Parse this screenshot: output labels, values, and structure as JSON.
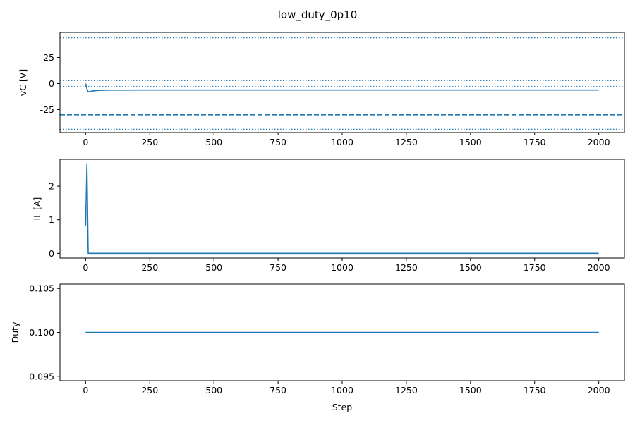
{
  "title": "low_duty_0p10",
  "chart_data": [
    {
      "type": "line",
      "ylabel": "vC [V]",
      "xlabel": "",
      "xlim": [
        -100,
        2100
      ],
      "ylim": [
        -47,
        49
      ],
      "xticks": [
        0,
        250,
        500,
        750,
        1000,
        1250,
        1500,
        1750,
        2000
      ],
      "yticks": [
        -25,
        0,
        25
      ],
      "series": [
        {
          "x": [
            0,
            5,
            10,
            20,
            30,
            50,
            75,
            100,
            150,
            200,
            300,
            500,
            1000,
            1500,
            2000
          ],
          "y": [
            0,
            -5,
            -8,
            -7.5,
            -7,
            -6.6,
            -6.4,
            -6.3,
            -6.3,
            -6.2,
            -6.2,
            -6.2,
            -6.2,
            -6.2,
            -6.2
          ]
        }
      ],
      "hlines": [
        {
          "y": 44,
          "style": "dotted"
        },
        {
          "y": 3,
          "style": "dotted"
        },
        {
          "y": -3,
          "style": "dotted"
        },
        {
          "y": -30,
          "style": "dashed"
        },
        {
          "y": -44,
          "style": "dotted"
        }
      ],
      "color": "#1f77b4"
    },
    {
      "type": "line",
      "ylabel": "iL [A]",
      "xlabel": "",
      "xlim": [
        -100,
        2100
      ],
      "ylim": [
        -0.14,
        2.8
      ],
      "xticks": [
        0,
        250,
        500,
        750,
        1000,
        1250,
        1500,
        1750,
        2000
      ],
      "yticks": [
        0,
        1,
        2
      ],
      "series": [
        {
          "x": [
            0,
            5,
            10,
            2000
          ],
          "y": [
            0.83,
            2.65,
            0,
            0
          ]
        }
      ],
      "hlines": [],
      "color": "#1f77b4"
    },
    {
      "type": "line",
      "ylabel": "Duty",
      "xlabel": "Step",
      "xlim": [
        -100,
        2100
      ],
      "ylim": [
        0.0945,
        0.1055
      ],
      "xticks": [
        0,
        250,
        500,
        750,
        1000,
        1250,
        1500,
        1750,
        2000
      ],
      "yticks": [
        0.095,
        0.1,
        0.105
      ],
      "yticklabels": [
        "0.095",
        "0.100",
        "0.105"
      ],
      "series": [
        {
          "x": [
            0,
            2000
          ],
          "y": [
            0.1,
            0.1
          ]
        }
      ],
      "hlines": [],
      "color": "#1f77b4"
    }
  ]
}
